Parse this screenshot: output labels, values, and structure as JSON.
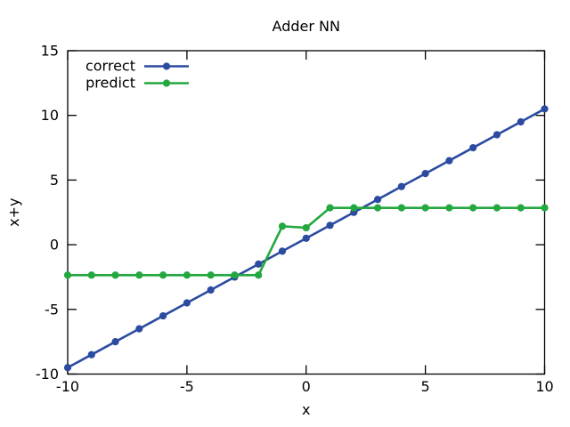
{
  "chart_data": {
    "type": "line",
    "title": "Adder NN",
    "xlabel": "x",
    "ylabel": "x+y",
    "xlim": [
      -10,
      10
    ],
    "ylim": [
      -10,
      15
    ],
    "xticks": [
      -10,
      -5,
      0,
      5,
      10
    ],
    "yticks": [
      -10,
      -5,
      0,
      5,
      10,
      15
    ],
    "grid": false,
    "legend_position": "top-left-inside",
    "x": [
      -10,
      -9,
      -8,
      -7,
      -6,
      -5,
      -4,
      -3,
      -2,
      -1,
      0,
      1,
      2,
      3,
      4,
      5,
      6,
      7,
      8,
      9,
      10
    ],
    "series": [
      {
        "name": "correct",
        "color": "#2b4ba0",
        "marker": "filled-circle",
        "values": [
          -9.5,
          -8.5,
          -7.5,
          -6.5,
          -5.5,
          -4.5,
          -3.5,
          -2.5,
          -1.5,
          -0.5,
          0.5,
          1.5,
          2.5,
          3.5,
          4.5,
          5.5,
          6.5,
          7.5,
          8.5,
          9.5,
          10.5
        ]
      },
      {
        "name": "predict",
        "color": "#22a83e",
        "marker": "filled-circle",
        "values": [
          -2.35,
          -2.35,
          -2.35,
          -2.35,
          -2.35,
          -2.35,
          -2.35,
          -2.35,
          -2.35,
          1.43,
          1.31,
          2.85,
          2.85,
          2.85,
          2.85,
          2.85,
          2.85,
          2.85,
          2.85,
          2.85,
          2.85
        ]
      }
    ]
  },
  "legend": {
    "items": [
      {
        "label": "correct"
      },
      {
        "label": "predict"
      }
    ]
  },
  "colors": {
    "axis": "#000000",
    "text": "#000000",
    "background": "#ffffff",
    "correct": "#2b4ba0",
    "predict": "#22a83e"
  }
}
